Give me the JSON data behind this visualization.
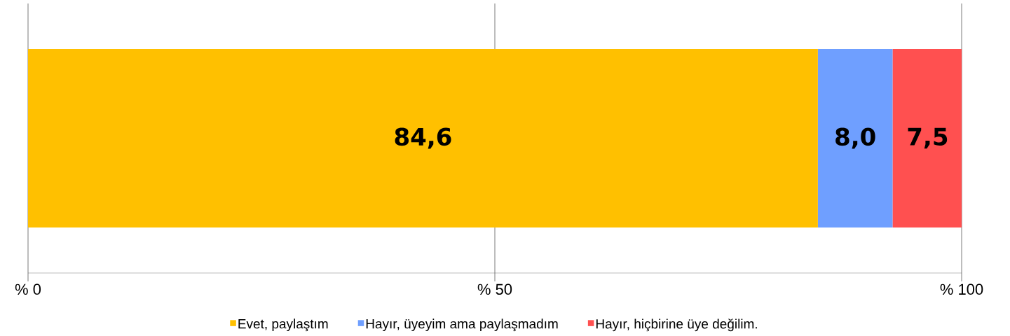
{
  "chart_data": {
    "type": "bar",
    "orientation": "horizontal",
    "stacked": true,
    "categories": [
      null
    ],
    "series": [
      {
        "name": "Evet, paylaştım",
        "color": "#ffc000",
        "values": [
          84.6
        ],
        "value_labels": [
          "84,6"
        ]
      },
      {
        "name": "Hayır, üyeyim ama paylaşmadım",
        "color": "#6f9fff",
        "values": [
          8.0
        ],
        "value_labels": [
          "8,0"
        ]
      },
      {
        "name": "Hayır, hiçbirine üye değilim.",
        "color": "#ff5050",
        "values": [
          7.5
        ],
        "value_labels": [
          "7,5"
        ]
      }
    ],
    "xlim": [
      0,
      100
    ],
    "xticks": [
      {
        "value": 0,
        "label": "% 0"
      },
      {
        "value": 50,
        "label": "% 50"
      },
      {
        "value": 100,
        "label": "% 100"
      }
    ],
    "grid": "x",
    "legend": "bottom"
  }
}
